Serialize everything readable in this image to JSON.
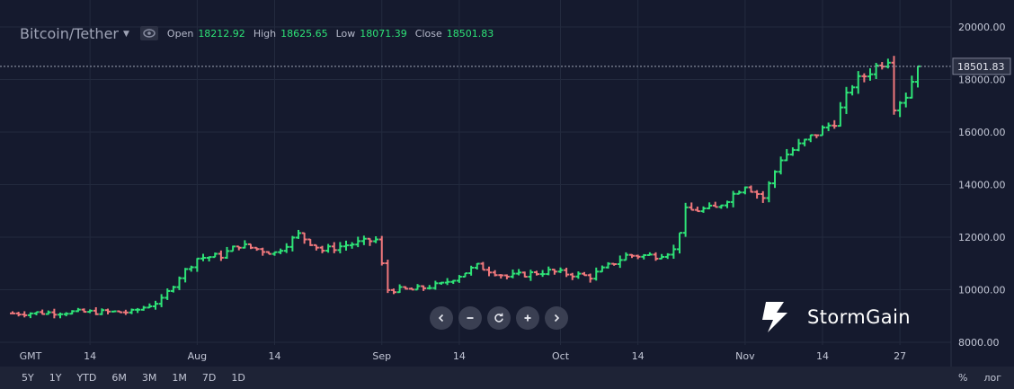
{
  "header": {
    "pair": "Bitcoin/Tether",
    "caret_icon": "caret-down-icon",
    "visibility_icon": "eye-icon",
    "ohlc": [
      {
        "key": "Open",
        "value": "18212.92"
      },
      {
        "key": "High",
        "value": "18625.65"
      },
      {
        "key": "Low",
        "value": "18071.39"
      },
      {
        "key": "Close",
        "value": "18501.83"
      }
    ]
  },
  "price_label": "18501.83",
  "controls": [
    {
      "name": "scroll-left-button",
      "icon": "chevron-left-icon"
    },
    {
      "name": "zoom-out-button",
      "icon": "minus-icon"
    },
    {
      "name": "reset-button",
      "icon": "refresh-icon"
    },
    {
      "name": "zoom-in-button",
      "icon": "plus-icon"
    },
    {
      "name": "scroll-right-button",
      "icon": "chevron-right-icon"
    }
  ],
  "brand": {
    "name": "StormGain",
    "logo_icon": "stormgain-logo-icon"
  },
  "ranges": [
    "5Y",
    "1Y",
    "YTD",
    "6M",
    "3M",
    "1M",
    "7D",
    "1D"
  ],
  "axis_options": {
    "percent": "%",
    "log": "лог"
  },
  "colors": {
    "background": "#151a2e",
    "grid": "#232a3e",
    "up": "#2ee377",
    "down": "#f0787c",
    "axis_text": "#c3c7d6",
    "control_bg": "#3a3f52"
  },
  "chart_data": {
    "type": "ohlc",
    "x_ticks": [
      {
        "label": "GMT",
        "day": 0
      },
      {
        "label": "14",
        "day": 13
      },
      {
        "label": "Aug",
        "day": 31
      },
      {
        "label": "14",
        "day": 44
      },
      {
        "label": "Sep",
        "day": 62
      },
      {
        "label": "14",
        "day": 75
      },
      {
        "label": "Oct",
        "day": 92
      },
      {
        "label": "14",
        "day": 105
      },
      {
        "label": "Nov",
        "day": 123
      },
      {
        "label": "14",
        "day": 136
      },
      {
        "label": "27",
        "day": 149
      }
    ],
    "y_ticks": [
      {
        "label": "8000.00",
        "value": 8000
      },
      {
        "label": "10000.00",
        "value": 10000
      },
      {
        "label": "12000.00",
        "value": 12000
      },
      {
        "label": "14000.00",
        "value": 14000
      },
      {
        "label": "16000.00",
        "value": 16000
      },
      {
        "label": "18000.00",
        "value": 18000
      },
      {
        "label": "20000.00",
        "value": 20000
      }
    ],
    "ylim": [
      8000,
      20000
    ],
    "last_close": 18501.83,
    "close_path": [
      [
        0,
        9100
      ],
      [
        10,
        9150
      ],
      [
        20,
        9150
      ],
      [
        25,
        9600
      ],
      [
        28,
        10500
      ],
      [
        31,
        11200
      ],
      [
        35,
        11300
      ],
      [
        38,
        11700
      ],
      [
        44,
        11400
      ],
      [
        48,
        12100
      ],
      [
        52,
        11500
      ],
      [
        56,
        11700
      ],
      [
        61,
        11900
      ],
      [
        63,
        10000
      ],
      [
        67,
        10000
      ],
      [
        72,
        10200
      ],
      [
        78,
        10900
      ],
      [
        83,
        10500
      ],
      [
        90,
        10700
      ],
      [
        97,
        10500
      ],
      [
        103,
        11300
      ],
      [
        108,
        11300
      ],
      [
        111,
        11500
      ],
      [
        113,
        13000
      ],
      [
        118,
        13100
      ],
      [
        123,
        14000
      ],
      [
        126,
        13500
      ],
      [
        129,
        15000
      ],
      [
        134,
        15800
      ],
      [
        138,
        16400
      ],
      [
        141,
        17800
      ],
      [
        145,
        18500
      ],
      [
        147,
        18800
      ],
      [
        148,
        17000
      ],
      [
        150,
        17400
      ],
      [
        152,
        18500
      ]
    ]
  }
}
